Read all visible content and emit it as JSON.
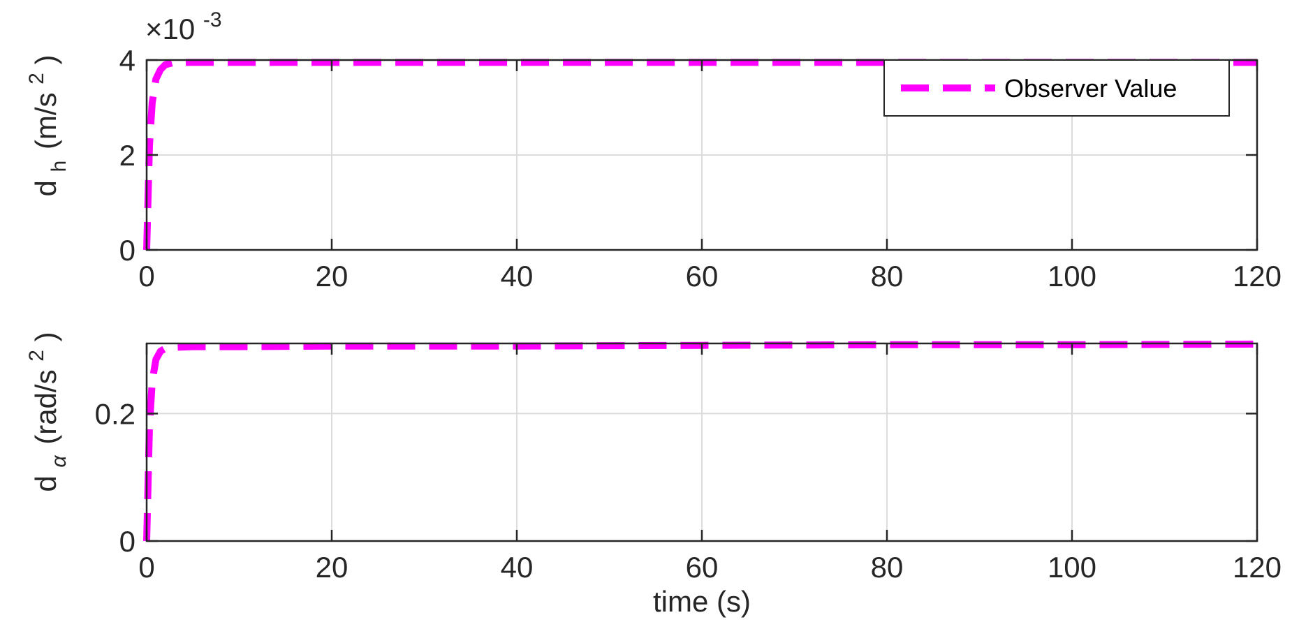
{
  "chart_data": [
    {
      "type": "line",
      "xlim": [
        0,
        120
      ],
      "ylim": [
        0,
        0.004
      ],
      "x_ticks": [
        "0",
        "20",
        "40",
        "60",
        "80",
        "100",
        "120"
      ],
      "y_ticks": [
        "0",
        "2",
        "4"
      ],
      "y_exponent": {
        "base": "×10",
        "power": "-3"
      },
      "ylabel": {
        "main": "d",
        "subscript": "h",
        "unit": "(m/s",
        "unit_sup": "2",
        "unit_close": ")"
      },
      "xlabel": "",
      "grid": true,
      "legend": {
        "position": "top-right",
        "entries": [
          "Observer Value"
        ]
      },
      "series": [
        {
          "name": "Observer Value",
          "color": "#ff00ff",
          "line_style": "dashed",
          "x": [
            0,
            0.3,
            0.6,
            1.0,
            1.5,
            2.0,
            3.0,
            5.0,
            10,
            20,
            40,
            60,
            80,
            100,
            120
          ],
          "y": [
            0,
            0.0022,
            0.0031,
            0.0036,
            0.0038,
            0.0039,
            0.00395,
            0.00395,
            0.00395,
            0.00395,
            0.00395,
            0.00395,
            0.00395,
            0.00395,
            0.00395
          ]
        }
      ]
    },
    {
      "type": "line",
      "xlim": [
        0,
        120
      ],
      "ylim": [
        0,
        0.31
      ],
      "x_ticks": [
        "0",
        "20",
        "40",
        "60",
        "80",
        "100",
        "120"
      ],
      "y_ticks": [
        "0",
        "0.2"
      ],
      "ylabel": {
        "main": "d",
        "subscript": "α",
        "unit": "(rad/s",
        "unit_sup": "2",
        "unit_close": ")"
      },
      "xlabel": "time (s)",
      "grid": true,
      "series": [
        {
          "color": "#ff00ff",
          "line_style": "dashed",
          "x": [
            0,
            0.3,
            0.6,
            1.0,
            1.5,
            2.0,
            3.0,
            5.0,
            10,
            20,
            40,
            60,
            80,
            100,
            120
          ],
          "y": [
            0,
            0.18,
            0.25,
            0.285,
            0.298,
            0.302,
            0.304,
            0.305,
            0.305,
            0.306,
            0.306,
            0.307,
            0.308,
            0.308,
            0.309
          ]
        }
      ]
    }
  ]
}
